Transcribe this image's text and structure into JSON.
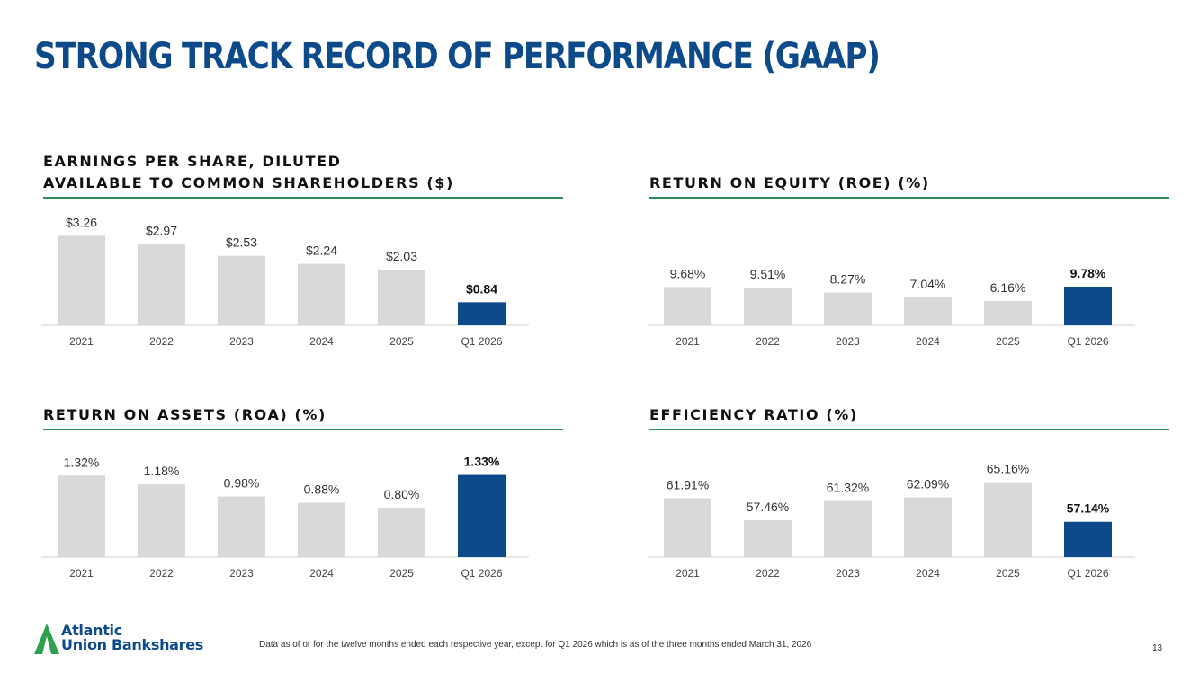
{
  "page": {
    "title": "STRONG TRACK RECORD OF PERFORMANCE (GAAP)",
    "footnote": "Data as of or for the twelve months ended each respective year, except for Q1 2026 which is as of the three months ended March 31, 2026",
    "page_number": "13",
    "logo": {
      "line1": "Atlantic",
      "line2": "Union Bankshares"
    }
  },
  "colors": {
    "title": "#0d4a8a",
    "bar": "#d9d9d9",
    "highlight": "#0d4a8a",
    "rule": "#2e8b57"
  },
  "chart_data": [
    {
      "type": "bar",
      "title_line1": "EARNINGS PER SHARE, DILUTED",
      "title_line2": "AVAILABLE TO COMMON SHAREHOLDERS ($)",
      "categories": [
        "2021",
        "2022",
        "2023",
        "2024",
        "2025",
        "Q1 2026"
      ],
      "values": [
        3.26,
        2.97,
        2.53,
        2.24,
        2.03,
        0.84
      ],
      "labels": [
        "$3.26",
        "$2.97",
        "$2.53",
        "$2.24",
        "$2.03",
        "$0.84"
      ],
      "ylim": [
        0,
        3.6
      ],
      "highlight_index": 5
    },
    {
      "type": "bar",
      "title_line1": "",
      "title_line2": "RETURN ON EQUITY (ROE) (%)",
      "categories": [
        "2021",
        "2022",
        "2023",
        "2024",
        "2025",
        "Q1 2026"
      ],
      "values": [
        9.68,
        9.51,
        8.27,
        7.04,
        6.16,
        9.78
      ],
      "labels": [
        "9.68%",
        "9.51%",
        "8.27%",
        "7.04%",
        "6.16%",
        "9.78%"
      ],
      "ylim": [
        0,
        25
      ],
      "highlight_index": 5
    },
    {
      "type": "bar",
      "title_line1": "",
      "title_line2": "RETURN ON ASSETS (ROA) (%)",
      "categories": [
        "2021",
        "2022",
        "2023",
        "2024",
        "2025",
        "Q1 2026"
      ],
      "values": [
        1.32,
        1.18,
        0.98,
        0.88,
        0.8,
        1.33
      ],
      "labels": [
        "1.32%",
        "1.18%",
        "0.98%",
        "0.88%",
        "0.80%",
        "1.33%"
      ],
      "ylim": [
        0,
        1.6
      ],
      "highlight_index": 5
    },
    {
      "type": "bar",
      "title_line1": "",
      "title_line2": "EFFICIENCY RATIO (%)",
      "categories": [
        "2021",
        "2022",
        "2023",
        "2024",
        "2025",
        "Q1 2026"
      ],
      "values": [
        61.91,
        57.46,
        61.32,
        62.09,
        65.16,
        57.14
      ],
      "labels": [
        "61.91%",
        "57.46%",
        "61.32%",
        "62.09%",
        "65.16%",
        "57.14%"
      ],
      "ylim": [
        50,
        70
      ],
      "highlight_index": 5
    }
  ]
}
